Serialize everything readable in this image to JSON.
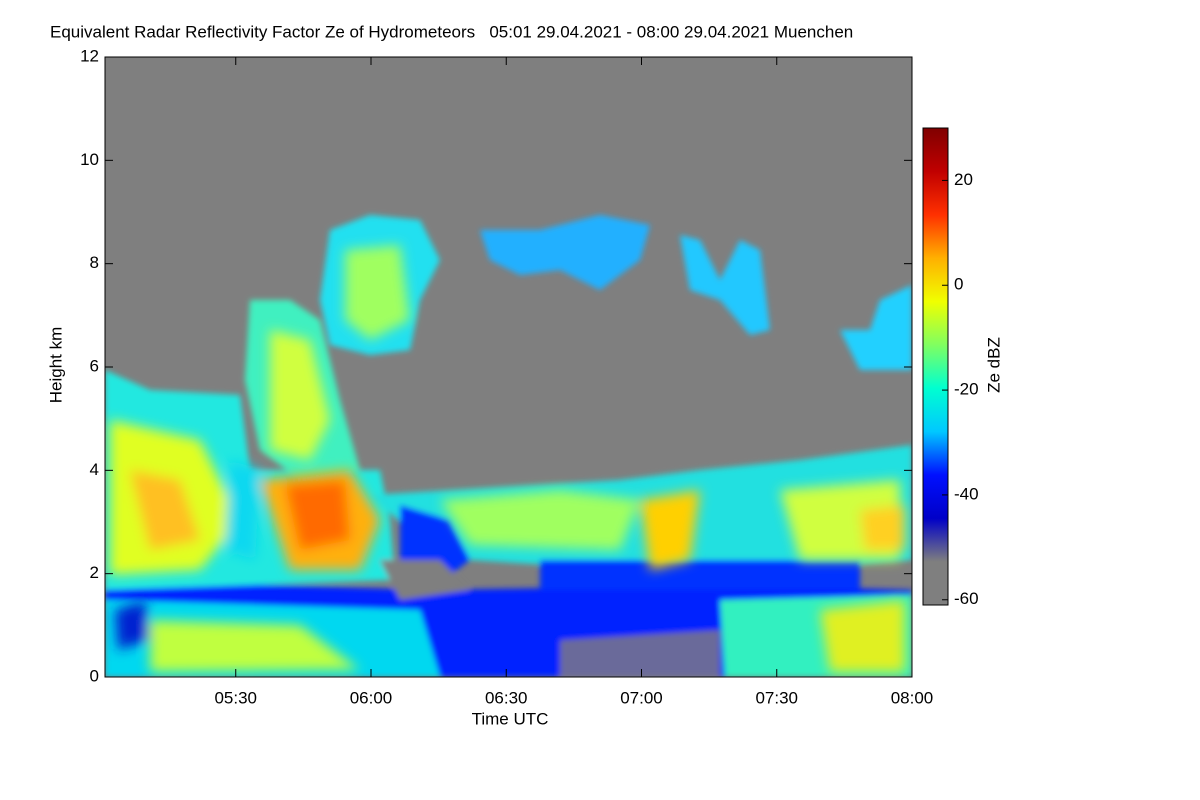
{
  "chart_data": {
    "type": "time-height",
    "title": "Equivalent Radar Reflectivity Factor Ze of Hydrometeors   05:01 29.04.2021 - 08:00 29.04.2021 Muenchen",
    "x_label": "Time UTC",
    "y_label": "Height km",
    "colorbar_label": "Ze dBZ",
    "xlim": [
      301,
      480
    ],
    "xticks": [
      {
        "value": 330,
        "label": "05:30"
      },
      {
        "value": 360,
        "label": "06:00"
      },
      {
        "value": 390,
        "label": "06:30"
      },
      {
        "value": 420,
        "label": "07:00"
      },
      {
        "value": 450,
        "label": "07:30"
      },
      {
        "value": 480,
        "label": "08:00"
      }
    ],
    "ylim": [
      0,
      12
    ],
    "yticks": [
      0,
      2,
      4,
      6,
      8,
      10,
      12
    ],
    "clim": [
      -61,
      30
    ],
    "cticks": [
      -60,
      -40,
      -20,
      0,
      20
    ],
    "colormap": [
      "#7f7f7f",
      "#7f7f7f",
      "#0000c8",
      "#0010ff",
      "#00c8ff",
      "#00ffd0",
      "#80ff60",
      "#f0ff00",
      "#ffb000",
      "#ff3000",
      "#c00000",
      "#800000"
    ],
    "background_color": "#7f7f7f"
  }
}
